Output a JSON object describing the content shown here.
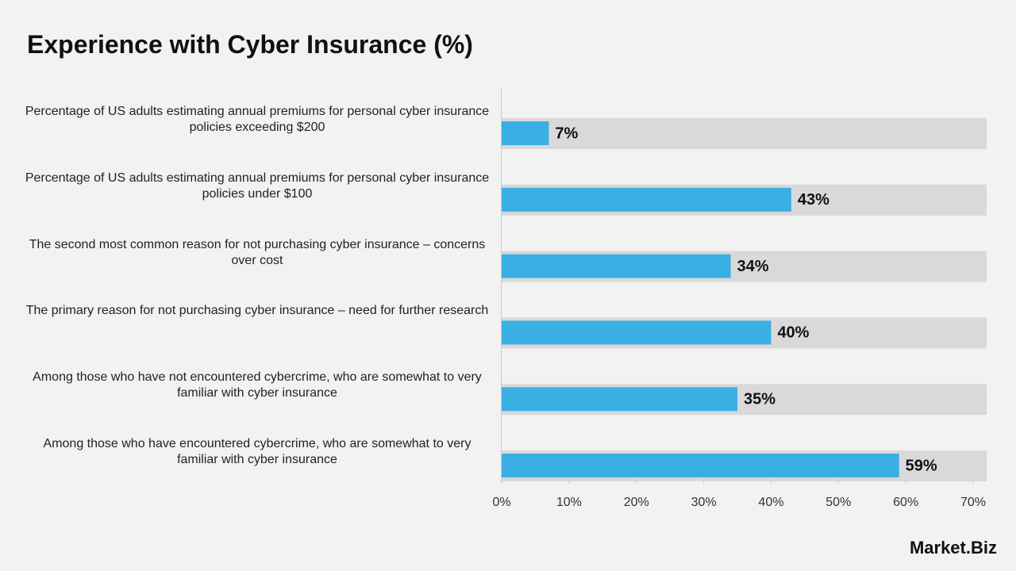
{
  "chart_data": {
    "type": "hbar",
    "title": "Experience with Cyber Insurance (%)",
    "categories": [
      "Percentage of US adults estimating annual premiums for personal cyber insurance policies exceeding $200",
      "Percentage of US adults estimating annual premiums for personal cyber insurance policies under $100",
      "The second most common reason for not purchasing cyber insurance – concerns over cost",
      "The primary reason for not purchasing cyber insurance – need for further research",
      "Among those who have not encountered cybercrime, who are somewhat to very familiar with cyber insurance",
      "Among those who have encountered cybercrime, who are somewhat to very familiar with cyber insurance"
    ],
    "values": [
      7,
      43,
      34,
      40,
      35,
      59
    ],
    "value_labels": [
      "7%",
      "43%",
      "34%",
      "40%",
      "35%",
      "59%"
    ],
    "color": "#3aafe3",
    "track_color": "#d9d9d9",
    "xlim": [
      0,
      72
    ],
    "xticks": [
      {
        "value": 0,
        "label": "0%"
      },
      {
        "value": 10,
        "label": "10%"
      },
      {
        "value": 20,
        "label": "20%"
      },
      {
        "value": 30,
        "label": "30%"
      },
      {
        "value": 40,
        "label": "40%"
      },
      {
        "value": 50,
        "label": "50%"
      },
      {
        "value": 60,
        "label": "60%"
      },
      {
        "value": 70,
        "label": "70%"
      }
    ]
  },
  "logo": "Market.Biz"
}
